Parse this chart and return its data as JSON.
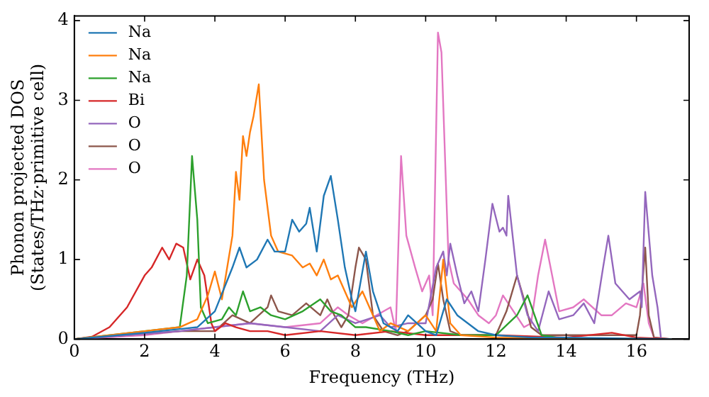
{
  "chart_data": {
    "type": "line",
    "xlabel": "Frequency (THz)",
    "ylabel": "Phonon projected DOS\n(States/THz·primitive cell)",
    "xlim": [
      0,
      17.5
    ],
    "ylim": [
      0,
      4.06
    ],
    "xticks": [
      0,
      2,
      4,
      6,
      8,
      10,
      12,
      14,
      16
    ],
    "yticks": [
      0,
      1,
      2,
      3,
      4
    ],
    "grid": false,
    "legend": "top left",
    "marker": "none",
    "line_style": "solid",
    "series": [
      {
        "name": "Na",
        "color": "#1f77b4",
        "x": [
          0,
          2,
          3.5,
          4,
          4.5,
          4.7,
          4.9,
          5.2,
          5.5,
          5.7,
          6,
          6.2,
          6.4,
          6.6,
          6.7,
          6.9,
          7.1,
          7.3,
          7.5,
          7.7,
          7.9,
          8,
          8.3,
          8.5,
          8.8,
          9.2,
          9.5,
          10,
          10.3,
          10.6,
          10.9,
          11.5,
          12,
          13,
          14,
          17
        ],
        "values": [
          0,
          0.08,
          0.15,
          0.35,
          0.9,
          1.15,
          0.9,
          1.0,
          1.25,
          1.1,
          1.1,
          1.5,
          1.35,
          1.45,
          1.65,
          1.1,
          1.8,
          2.05,
          1.5,
          0.9,
          0.5,
          0.35,
          1.1,
          0.6,
          0.2,
          0.1,
          0.3,
          0.1,
          0.05,
          0.5,
          0.3,
          0.1,
          0.05,
          0.02,
          0.02,
          0
        ]
      },
      {
        "name": "Na",
        "color": "#ff7f0e",
        "x": [
          0,
          2,
          3,
          3.5,
          3.8,
          4,
          4.2,
          4.5,
          4.6,
          4.7,
          4.8,
          4.9,
          5,
          5.1,
          5.25,
          5.4,
          5.6,
          5.8,
          6.2,
          6.5,
          6.7,
          6.9,
          7.1,
          7.3,
          7.5,
          7.7,
          7.9,
          8.2,
          8.5,
          8.7,
          9,
          9.5,
          10,
          10.3,
          10.5,
          10.7,
          11,
          12,
          17
        ],
        "values": [
          0,
          0.1,
          0.15,
          0.25,
          0.55,
          0.85,
          0.5,
          1.3,
          2.1,
          1.75,
          2.55,
          2.3,
          2.6,
          2.8,
          3.2,
          2.0,
          1.3,
          1.1,
          1.05,
          0.9,
          0.95,
          0.8,
          1.0,
          0.75,
          0.8,
          0.6,
          0.4,
          0.6,
          0.3,
          0.1,
          0.2,
          0.1,
          0.3,
          0.1,
          1.0,
          0.2,
          0.05,
          0.02,
          0
        ]
      },
      {
        "name": "Na",
        "color": "#2ca02c",
        "x": [
          0,
          2,
          3,
          3.2,
          3.35,
          3.5,
          3.6,
          3.8,
          4.2,
          4.4,
          4.6,
          4.8,
          5,
          5.3,
          5.6,
          6,
          6.5,
          7,
          7.3,
          7.6,
          8,
          8.3,
          9,
          9.5,
          10,
          11,
          12,
          12.6,
          12.9,
          13.1,
          13.3,
          14,
          17
        ],
        "values": [
          0,
          0.1,
          0.15,
          0.8,
          2.3,
          1.5,
          0.4,
          0.2,
          0.25,
          0.4,
          0.3,
          0.6,
          0.35,
          0.4,
          0.3,
          0.25,
          0.35,
          0.5,
          0.35,
          0.3,
          0.15,
          0.15,
          0.1,
          0.05,
          0.1,
          0.05,
          0.05,
          0.3,
          0.55,
          0.3,
          0.05,
          0,
          0
        ]
      },
      {
        "name": "Bi",
        "color": "#d62728",
        "x": [
          0,
          0.5,
          1,
          1.5,
          2,
          2.2,
          2.5,
          2.7,
          2.9,
          3.1,
          3.3,
          3.5,
          3.7,
          3.9,
          4,
          4.3,
          4.6,
          5,
          5.5,
          6,
          7,
          8,
          9,
          10,
          12,
          14,
          15.3,
          16,
          17
        ],
        "values": [
          0,
          0.03,
          0.15,
          0.4,
          0.8,
          0.9,
          1.15,
          1.0,
          1.2,
          1.15,
          0.75,
          1.0,
          0.8,
          0.2,
          0.1,
          0.2,
          0.15,
          0.1,
          0.1,
          0.05,
          0.1,
          0.05,
          0.1,
          0.05,
          0.05,
          0.02,
          0.08,
          0.02,
          0
        ]
      },
      {
        "name": "O",
        "color": "#9467bd",
        "x": [
          0,
          3,
          4,
          5,
          6,
          7,
          7.5,
          8,
          8.7,
          9,
          9.5,
          10,
          10.3,
          10.5,
          10.6,
          10.7,
          10.9,
          11.1,
          11.3,
          11.5,
          11.7,
          11.9,
          12.1,
          12.2,
          12.3,
          12.35,
          12.6,
          12.9,
          13.2,
          13.5,
          13.8,
          14.2,
          14.5,
          14.8,
          15.05,
          15.2,
          15.4,
          15.8,
          16.1,
          16.15,
          16.25,
          16.45,
          16.6,
          16.7
        ],
        "values": [
          0,
          0.1,
          0.15,
          0.2,
          0.15,
          0.1,
          0.3,
          0.2,
          0.3,
          0.15,
          0.2,
          0.2,
          0.9,
          1.1,
          0.8,
          1.2,
          0.8,
          0.45,
          0.6,
          0.35,
          1.0,
          1.7,
          1.35,
          1.4,
          1.3,
          1.8,
          0.8,
          0.3,
          0.1,
          0.6,
          0.25,
          0.3,
          0.45,
          0.2,
          0.9,
          1.3,
          0.7,
          0.5,
          0.6,
          0.4,
          1.85,
          0.8,
          0.4,
          0
        ]
      },
      {
        "name": "O",
        "color": "#8c564b",
        "x": [
          0,
          3,
          4,
          4.5,
          5,
          5.5,
          5.6,
          5.8,
          6.2,
          6.6,
          7,
          7.2,
          7.4,
          7.6,
          7.8,
          8,
          8.1,
          8.3,
          8.5,
          8.8,
          9.2,
          9.5,
          10,
          10.2,
          10.35,
          10.5,
          10.7,
          11,
          12,
          12.3,
          12.6,
          12.8,
          13,
          13.3,
          14,
          15,
          16,
          16.1,
          16.25,
          16.35,
          16.5,
          17
        ],
        "values": [
          0,
          0.1,
          0.1,
          0.3,
          0.2,
          0.4,
          0.55,
          0.35,
          0.3,
          0.45,
          0.3,
          0.5,
          0.3,
          0.15,
          0.3,
          0.9,
          1.15,
          1.0,
          0.3,
          0.1,
          0.05,
          0.1,
          0.3,
          0.5,
          0.95,
          0.5,
          0.1,
          0.05,
          0.05,
          0.35,
          0.8,
          0.5,
          0.15,
          0.05,
          0.05,
          0.05,
          0.05,
          0.3,
          1.15,
          0.3,
          0.02,
          0
        ]
      },
      {
        "name": "O",
        "color": "#e377c2",
        "x": [
          0,
          2,
          3,
          4,
          5,
          6,
          7,
          7.5,
          7.8,
          8.2,
          8.6,
          9,
          9.15,
          9.3,
          9.45,
          9.7,
          9.9,
          10.1,
          10.2,
          10.35,
          10.45,
          10.65,
          10.8,
          11.2,
          11.5,
          11.8,
          12,
          12.2,
          12.5,
          12.8,
          13,
          13.2,
          13.4,
          13.6,
          13.8,
          14.2,
          14.5,
          15,
          15.3,
          15.7,
          16,
          16.2,
          16.35,
          16.5,
          17
        ],
        "values": [
          0,
          0.05,
          0.1,
          0.15,
          0.2,
          0.15,
          0.2,
          0.4,
          0.3,
          0.2,
          0.3,
          0.4,
          0.1,
          2.3,
          1.3,
          0.9,
          0.6,
          0.8,
          0.3,
          3.85,
          3.6,
          1.0,
          0.7,
          0.5,
          0.3,
          0.2,
          0.3,
          0.55,
          0.35,
          0.15,
          0.2,
          0.8,
          1.25,
          0.8,
          0.35,
          0.4,
          0.5,
          0.3,
          0.3,
          0.45,
          0.4,
          0.7,
          0.2,
          0.02,
          0
        ]
      }
    ]
  }
}
